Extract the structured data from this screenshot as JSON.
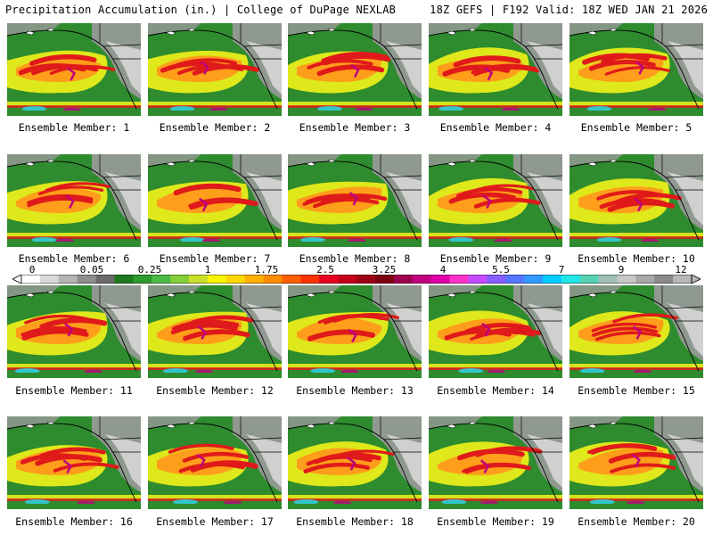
{
  "header": {
    "left": "Precipitation Accumulation (in.) | College of DuPage NEXLAB",
    "right": "18Z GEFS | F192 Valid: 18Z WED JAN 21 2026"
  },
  "member_label_prefix": "Ensemble Member:",
  "members": [
    "1",
    "2",
    "3",
    "4",
    "5",
    "6",
    "7",
    "8",
    "9",
    "10",
    "11",
    "12",
    "13",
    "14",
    "15",
    "16",
    "17",
    "18",
    "19",
    "20"
  ],
  "colorbar": {
    "tick_labels": [
      "0",
      "0.05",
      "0.25",
      "1",
      "1.75",
      "2.5",
      "3.25",
      "4",
      "5.5",
      "7",
      "9",
      "12"
    ],
    "colors": [
      "#ffffff",
      "#d9d9d9",
      "#b4b4b4",
      "#8e8e8e",
      "#6b6b6b",
      "#1f7a1f",
      "#2f9b2f",
      "#4cb848",
      "#86cf3a",
      "#c8e02a",
      "#f5f500",
      "#ffd700",
      "#ffb000",
      "#ff8c00",
      "#ff6000",
      "#ff3300",
      "#e8001e",
      "#c40018",
      "#9e0014",
      "#7a0010",
      "#9e004e",
      "#c0007e",
      "#e000a8",
      "#ff33cc",
      "#c64bff",
      "#8a5cff",
      "#5577ff",
      "#3399ff",
      "#00ccff",
      "#22e6e6",
      "#55d2b4",
      "#9fbfb4",
      "#c8c8c8",
      "#a8a8a8",
      "#8a8a8a",
      "#b8b8b8"
    ]
  },
  "map_colors": {
    "land_gray": "#9a9a9a",
    "light_gray": "#d6d6d6",
    "green": "#2e8b2e",
    "yellow": "#f2f21a",
    "orange": "#ff9a1a",
    "red": "#e01a1a",
    "magenta": "#c0007e",
    "cyan": "#33ccdd",
    "border": "#000000"
  }
}
